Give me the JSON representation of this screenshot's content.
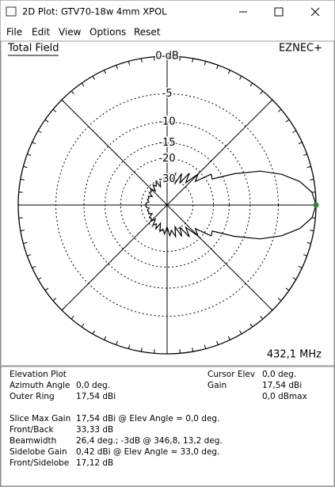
{
  "window": {
    "title": "2D Plot: GTV70-18w 4mm  XPOL",
    "menu": [
      "File",
      "Edit",
      "View",
      "Options",
      "Reset"
    ]
  },
  "plot": {
    "label": "Total Field",
    "brand": "EZNEC+",
    "frequency": "432,1 MHz"
  },
  "chart_data": {
    "type": "polar",
    "color": "#000000",
    "cursor_color": "#2e8b2e",
    "rings": [
      {
        "value": 0,
        "label": "0 dB"
      },
      {
        "value": -5,
        "label": "-5"
      },
      {
        "value": -10,
        "label": "-10"
      },
      {
        "value": -15,
        "label": "-15"
      },
      {
        "value": -20,
        "label": "-20"
      },
      {
        "value": -30,
        "label": "-30"
      }
    ],
    "angles": [
      0,
      5,
      10,
      15,
      20,
      25,
      30,
      35,
      40,
      45,
      50,
      55,
      60,
      65,
      70,
      75,
      80,
      85,
      90,
      95,
      100,
      105,
      110,
      115,
      120,
      125,
      130,
      135,
      140,
      145,
      150,
      155,
      160,
      165,
      170,
      175,
      180,
      185,
      190,
      195,
      200,
      205,
      210,
      215,
      220,
      225,
      230,
      235,
      240,
      245,
      250,
      255,
      260,
      265,
      270,
      275,
      280,
      285,
      290,
      295,
      300,
      305,
      310,
      315,
      320,
      325,
      330,
      335,
      340,
      345,
      350,
      355
    ],
    "values": [
      0,
      -0.4,
      -1.7,
      -3.9,
      -7,
      -12,
      -18,
      -17.5,
      -24,
      -21,
      -28,
      -23,
      -30,
      -25,
      -32,
      -26,
      -30,
      -27,
      -33,
      -28,
      -31,
      -29,
      -35,
      -30,
      -33,
      -31,
      -36,
      -32,
      -34,
      -33,
      -37,
      -34,
      -35,
      -34,
      -36,
      -33.5,
      -33.3,
      -33.5,
      -36,
      -34,
      -35,
      -34,
      -37,
      -33,
      -34,
      -32,
      -36,
      -31,
      -33,
      -30,
      -35,
      -29,
      -31,
      -28,
      -33,
      -27,
      -30,
      -26,
      -32,
      -25,
      -30,
      -23,
      -28,
      -21,
      -24,
      -17.5,
      -18,
      -12,
      -7,
      -3.9,
      -1.7,
      -0.4
    ]
  },
  "info": {
    "plot_kind": "Elevation Plot",
    "left": [
      [
        "Azimuth Angle",
        "0,0 deg."
      ],
      [
        "Outer Ring",
        "17,54 dBi"
      ]
    ],
    "right": [
      [
        "Cursor Elev",
        "0,0 deg."
      ],
      [
        "Gain",
        "17,54 dBi"
      ]
    ],
    "right_extra": "0,0 dBmax",
    "summary": [
      [
        "Slice Max Gain",
        "17,54 dBi @ Elev Angle = 0,0 deg."
      ],
      [
        "Front/Back",
        "33,33 dB"
      ],
      [
        "Beamwidth",
        "26,4 deg.; -3dB @ 346,8, 13,2 deg."
      ],
      [
        "Sidelobe Gain",
        "0,42 dBi @ Elev Angle = 33,0 deg."
      ],
      [
        "Front/Sidelobe",
        "17,12 dB"
      ]
    ]
  }
}
